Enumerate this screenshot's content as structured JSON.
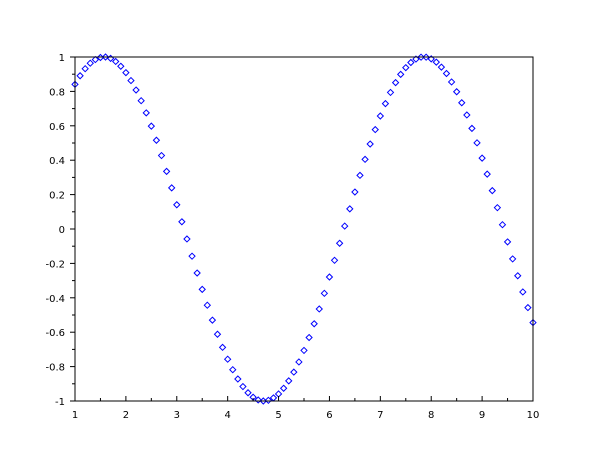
{
  "chart_data": {
    "type": "scatter",
    "title": "",
    "xlabel": "",
    "ylabel": "",
    "xlim": [
      1,
      10
    ],
    "ylim": [
      -1,
      1
    ],
    "grid": false,
    "marker": "diamond",
    "marker_color": "#0000ff",
    "x_ticks": [
      "1",
      "2",
      "3",
      "4",
      "5",
      "6",
      "7",
      "8",
      "9",
      "10"
    ],
    "y_ticks": [
      "-1",
      "-0.8",
      "-0.6",
      "-0.4",
      "-0.2",
      "0",
      "0.2",
      "0.4",
      "0.6",
      "0.8",
      "1"
    ],
    "series": [
      {
        "x_start": 1,
        "x_end": 10,
        "x_step": 0.1,
        "x": [
          1,
          1.1,
          1.2,
          1.3,
          1.4,
          1.5,
          1.6,
          1.7,
          1.8,
          1.9,
          2,
          2.1,
          2.2,
          2.3,
          2.4,
          2.5,
          2.6,
          2.7,
          2.8,
          2.9,
          3,
          3.1,
          3.2,
          3.3,
          3.4,
          3.5,
          3.6,
          3.7,
          3.8,
          3.9,
          4,
          4.1,
          4.2,
          4.3,
          4.4,
          4.5,
          4.6,
          4.7,
          4.8,
          4.9,
          5,
          5.1,
          5.2,
          5.3,
          5.4,
          5.5,
          5.6,
          5.7,
          5.8,
          5.9,
          6,
          6.1,
          6.2,
          6.3,
          6.4,
          6.5,
          6.6,
          6.7,
          6.8,
          6.9,
          7,
          7.1,
          7.2,
          7.3,
          7.4,
          7.5,
          7.6,
          7.7,
          7.8,
          7.9,
          8,
          8.1,
          8.2,
          8.3,
          8.4,
          8.5,
          8.6,
          8.7,
          8.8,
          8.9,
          9,
          9.1,
          9.2,
          9.3,
          9.4,
          9.5,
          9.6,
          9.7,
          9.8,
          9.9,
          10
        ],
        "y": [
          0.841,
          0.891,
          0.932,
          0.964,
          0.985,
          0.997,
          1.0,
          0.992,
          0.974,
          0.946,
          0.909,
          0.863,
          0.808,
          0.746,
          0.675,
          0.598,
          0.516,
          0.427,
          0.335,
          0.239,
          0.141,
          0.042,
          -0.058,
          -0.158,
          -0.256,
          -0.351,
          -0.443,
          -0.53,
          -0.612,
          -0.688,
          -0.757,
          -0.818,
          -0.872,
          -0.916,
          -0.952,
          -0.978,
          -0.994,
          -1.0,
          -0.996,
          -0.982,
          -0.959,
          -0.926,
          -0.883,
          -0.832,
          -0.773,
          -0.706,
          -0.631,
          -0.551,
          -0.465,
          -0.374,
          -0.279,
          -0.182,
          -0.083,
          0.017,
          0.117,
          0.215,
          0.312,
          0.405,
          0.494,
          0.578,
          0.657,
          0.729,
          0.794,
          0.851,
          0.899,
          0.938,
          0.968,
          0.988,
          0.999,
          0.999,
          0.989,
          0.97,
          0.941,
          0.904,
          0.855,
          0.798,
          0.734,
          0.663,
          0.585,
          0.501,
          0.412,
          0.319,
          0.223,
          0.124,
          0.025,
          -0.075,
          -0.174,
          -0.272,
          -0.366,
          -0.457,
          -0.544
        ]
      }
    ]
  }
}
